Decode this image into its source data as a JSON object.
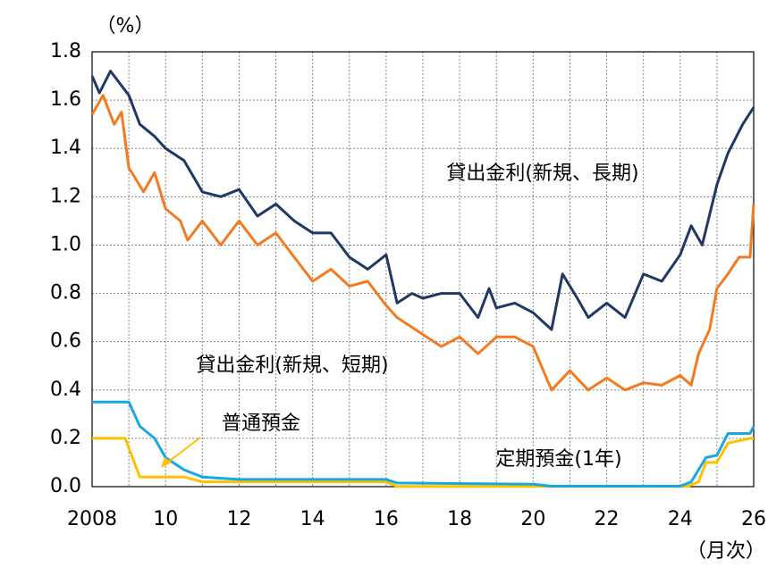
{
  "chart_data": {
    "type": "line",
    "y_unit_label": "（%）",
    "x_unit_label": "（月次）",
    "xlim": [
      2008,
      2026
    ],
    "ylim": [
      0,
      1.8
    ],
    "xticks": [
      2008,
      {
        "value": 2010,
        "label": "10"
      },
      {
        "value": 2012,
        "label": "12"
      },
      {
        "value": 2014,
        "label": "14"
      },
      {
        "value": 2016,
        "label": "16"
      },
      {
        "value": 2018,
        "label": "18"
      },
      {
        "value": 2020,
        "label": "20"
      },
      {
        "value": 2022,
        "label": "22"
      },
      {
        "value": 2024,
        "label": "24"
      },
      {
        "value": 2026,
        "label": "26"
      }
    ],
    "xgrid_minor": [
      2009,
      2011,
      2013,
      2015,
      2017,
      2019,
      2021,
      2023,
      2025
    ],
    "yticks": [
      {
        "value": 0,
        "label": "0.0"
      },
      0.2,
      0.4,
      0.6,
      0.8,
      {
        "value": 1,
        "label": "1.0"
      },
      1.2,
      1.4,
      1.6,
      1.8
    ],
    "grid": true,
    "series": [
      {
        "name": "貸出金利(新規、長期)",
        "color": "#1f3864",
        "x": [
          2008.0,
          2008.2,
          2008.5,
          2008.8,
          2009.0,
          2009.3,
          2009.7,
          2010.0,
          2010.5,
          2011.0,
          2011.5,
          2012.0,
          2012.5,
          2013.0,
          2013.5,
          2014.0,
          2014.5,
          2015.0,
          2015.5,
          2016.0,
          2016.3,
          2016.7,
          2017.0,
          2017.5,
          2018.0,
          2018.5,
          2018.8,
          2019.0,
          2019.5,
          2020.0,
          2020.5,
          2020.8,
          2021.2,
          2021.5,
          2022.0,
          2022.5,
          2023.0,
          2023.5,
          2024.0,
          2024.3,
          2024.6,
          2025.0,
          2025.3,
          2025.7,
          2026.0
        ],
        "values": [
          1.7,
          1.63,
          1.72,
          1.66,
          1.62,
          1.5,
          1.45,
          1.4,
          1.35,
          1.22,
          1.2,
          1.23,
          1.12,
          1.17,
          1.1,
          1.05,
          1.05,
          0.95,
          0.9,
          0.96,
          0.76,
          0.8,
          0.78,
          0.8,
          0.8,
          0.7,
          0.82,
          0.74,
          0.76,
          0.72,
          0.65,
          0.88,
          0.78,
          0.7,
          0.76,
          0.7,
          0.88,
          0.85,
          0.96,
          1.08,
          1.0,
          1.25,
          1.38,
          1.5,
          1.57
        ]
      },
      {
        "name": "貸出金利(新規、短期)",
        "color": "#f47a20",
        "x": [
          2008.0,
          2008.3,
          2008.6,
          2008.8,
          2009.0,
          2009.4,
          2009.7,
          2010.0,
          2010.4,
          2010.6,
          2011.0,
          2011.5,
          2012.0,
          2012.5,
          2013.0,
          2013.5,
          2014.0,
          2014.5,
          2015.0,
          2015.5,
          2016.0,
          2016.3,
          2016.6,
          2017.0,
          2017.5,
          2018.0,
          2018.5,
          2019.0,
          2019.5,
          2020.0,
          2020.5,
          2021.0,
          2021.5,
          2022.0,
          2022.5,
          2023.0,
          2023.5,
          2024.0,
          2024.3,
          2024.5,
          2024.8,
          2025.0,
          2025.3,
          2025.6,
          2025.9,
          2026.0
        ],
        "values": [
          1.54,
          1.62,
          1.5,
          1.55,
          1.32,
          1.22,
          1.3,
          1.15,
          1.1,
          1.02,
          1.1,
          1.0,
          1.1,
          1.0,
          1.05,
          0.95,
          0.85,
          0.9,
          0.83,
          0.85,
          0.75,
          0.7,
          0.67,
          0.63,
          0.58,
          0.62,
          0.55,
          0.62,
          0.62,
          0.58,
          0.4,
          0.48,
          0.4,
          0.45,
          0.4,
          0.43,
          0.42,
          0.46,
          0.42,
          0.55,
          0.65,
          0.82,
          0.88,
          0.95,
          0.95,
          1.17
        ]
      },
      {
        "name": "普通預金",
        "color": "#ffc000",
        "x": [
          2008.0,
          2008.9,
          2009.1,
          2009.3,
          2010.5,
          2011.0,
          2016.0,
          2016.3,
          2024.2,
          2024.5,
          2024.7,
          2025.0,
          2025.3,
          2025.9,
          2026.0
        ],
        "values": [
          0.2,
          0.2,
          0.12,
          0.04,
          0.04,
          0.02,
          0.02,
          0.001,
          0.001,
          0.02,
          0.1,
          0.1,
          0.18,
          0.2,
          0.2
        ]
      },
      {
        "name": "定期預金(1年)",
        "color": "#17a8e3",
        "x": [
          2008.0,
          2009.0,
          2009.3,
          2009.7,
          2010.0,
          2010.5,
          2011.0,
          2012.0,
          2016.0,
          2016.3,
          2020.0,
          2020.5,
          2024.0,
          2024.3,
          2024.7,
          2025.0,
          2025.3,
          2025.9,
          2026.0
        ],
        "values": [
          0.35,
          0.35,
          0.25,
          0.2,
          0.12,
          0.07,
          0.04,
          0.03,
          0.03,
          0.015,
          0.01,
          0.002,
          0.002,
          0.02,
          0.12,
          0.13,
          0.22,
          0.22,
          0.25
        ]
      }
    ]
  }
}
